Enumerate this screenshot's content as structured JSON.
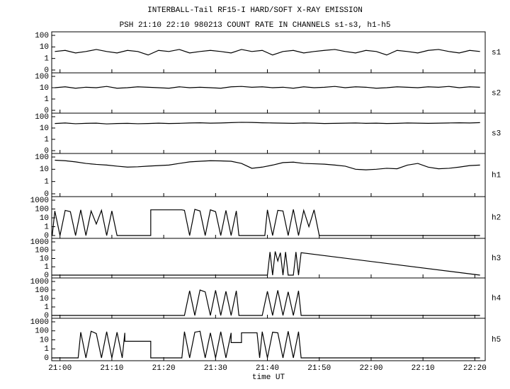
{
  "chart_data": {
    "type": "line",
    "title": "INTERBALL-Tail RF15-I HARD/SOFT X-RAY EMISSION",
    "subtitle": "PSH 21:10 22:10 980213  COUNT RATE IN CHANNELS s1-s3, h1-h5",
    "x_label": "time UT",
    "yscale": "log",
    "xlim": [
      1258.4,
      1342
    ],
    "xticks": [
      {
        "value": 1260,
        "label": "21:00"
      },
      {
        "value": 1270,
        "label": "21:10"
      },
      {
        "value": 1280,
        "label": "21:20"
      },
      {
        "value": 1290,
        "label": "21:30"
      },
      {
        "value": 1300,
        "label": "21:40"
      },
      {
        "value": 1310,
        "label": "21:50"
      },
      {
        "value": 1320,
        "label": "22:00"
      },
      {
        "value": 1330,
        "label": "22:10"
      },
      {
        "value": 1340,
        "label": "22:20"
      }
    ],
    "series": [
      {
        "name": "s1",
        "color": "#000000",
        "ylim": [
          0,
          100
        ],
        "yticks": [
          0,
          1,
          10,
          100
        ],
        "x": [
          1259,
          1261,
          1263,
          1265,
          1267,
          1269,
          1271,
          1273,
          1275,
          1277,
          1279,
          1281,
          1283,
          1285,
          1287,
          1289,
          1291,
          1293,
          1295,
          1297,
          1299,
          1301,
          1303,
          1305,
          1307,
          1309,
          1311,
          1313,
          1315,
          1317,
          1319,
          1321,
          1323,
          1325,
          1327,
          1329,
          1331,
          1333,
          1335,
          1337,
          1339,
          1341
        ],
        "values": [
          4,
          5,
          3,
          4,
          6,
          4,
          3,
          5,
          4,
          2,
          5,
          4,
          6,
          3,
          4,
          5,
          4,
          3,
          6,
          4,
          5,
          2,
          4,
          5,
          3,
          4,
          5,
          6,
          4,
          3,
          5,
          4,
          2,
          5,
          4,
          3,
          5,
          6,
          4,
          3,
          5,
          4
        ]
      },
      {
        "name": "s2",
        "color": "#000000",
        "ylim": [
          0,
          100
        ],
        "yticks": [
          0,
          1,
          10,
          100
        ],
        "x": [
          1259,
          1261,
          1263,
          1265,
          1267,
          1269,
          1271,
          1273,
          1275,
          1277,
          1279,
          1281,
          1283,
          1285,
          1287,
          1289,
          1291,
          1293,
          1295,
          1297,
          1299,
          1301,
          1303,
          1305,
          1307,
          1309,
          1311,
          1313,
          1315,
          1317,
          1319,
          1321,
          1323,
          1325,
          1327,
          1329,
          1331,
          1333,
          1335,
          1337,
          1339,
          1341
        ],
        "values": [
          10,
          12,
          9,
          11,
          10,
          13,
          9,
          10,
          12,
          11,
          10,
          9,
          12,
          10,
          11,
          10,
          9,
          12,
          13,
          11,
          12,
          10,
          11,
          9,
          12,
          10,
          11,
          13,
          10,
          12,
          11,
          9,
          10,
          12,
          11,
          10,
          12,
          11,
          13,
          10,
          12,
          11
        ]
      },
      {
        "name": "s3",
        "color": "#000000",
        "ylim": [
          0,
          100
        ],
        "yticks": [
          0,
          1,
          10,
          100
        ],
        "x": [
          1259,
          1261,
          1263,
          1265,
          1267,
          1269,
          1271,
          1273,
          1275,
          1277,
          1279,
          1281,
          1283,
          1285,
          1287,
          1289,
          1291,
          1293,
          1295,
          1297,
          1299,
          1301,
          1303,
          1305,
          1307,
          1309,
          1311,
          1313,
          1315,
          1317,
          1319,
          1321,
          1323,
          1325,
          1327,
          1329,
          1331,
          1333,
          1335,
          1337,
          1339,
          1341
        ],
        "values": [
          25,
          28,
          24,
          26,
          27,
          23,
          25,
          26,
          24,
          25,
          27,
          25,
          26,
          28,
          29,
          27,
          28,
          30,
          32,
          31,
          29,
          28,
          27,
          26,
          28,
          27,
          25,
          26,
          27,
          28,
          26,
          27,
          25,
          26,
          28,
          27,
          26,
          27,
          28,
          29,
          28,
          30
        ]
      },
      {
        "name": "h1",
        "color": "#000000",
        "ylim": [
          0,
          100
        ],
        "yticks": [
          0,
          1,
          10,
          100
        ],
        "x": [
          1259,
          1261,
          1263,
          1265,
          1267,
          1269,
          1271,
          1273,
          1275,
          1277,
          1279,
          1281,
          1283,
          1285,
          1287,
          1289,
          1291,
          1293,
          1295,
          1297,
          1299,
          1301,
          1303,
          1305,
          1307,
          1309,
          1311,
          1313,
          1315,
          1317,
          1319,
          1321,
          1323,
          1325,
          1327,
          1329,
          1331,
          1333,
          1335,
          1337,
          1339,
          1341
        ],
        "values": [
          55,
          50,
          40,
          30,
          25,
          22,
          18,
          15,
          16,
          18,
          20,
          22,
          30,
          40,
          45,
          50,
          48,
          45,
          30,
          12,
          15,
          22,
          35,
          38,
          30,
          28,
          26,
          22,
          18,
          10,
          9,
          10,
          12,
          11,
          22,
          30,
          15,
          11,
          12,
          15,
          20,
          22
        ]
      },
      {
        "name": "h2",
        "color": "#000000",
        "ylim": [
          0,
          1000
        ],
        "yticks": [
          0,
          1,
          10,
          100,
          1000
        ],
        "x": [
          1258.5,
          1259,
          1260,
          1261,
          1262,
          1263,
          1264,
          1265,
          1266,
          1267,
          1268,
          1269,
          1270,
          1271,
          1272,
          1277.5,
          1277.5,
          1283.5,
          1284,
          1285,
          1286,
          1287,
          1288,
          1289,
          1290,
          1291,
          1292,
          1293,
          1294,
          1294.5,
          1299.5,
          1300,
          1301,
          1302,
          1303,
          1304,
          1305,
          1306,
          1307,
          1308,
          1309,
          1310,
          1341
        ],
        "values": [
          0,
          60,
          0,
          70,
          50,
          0,
          80,
          0,
          60,
          2,
          70,
          0,
          60,
          0,
          0,
          0,
          80,
          80,
          70,
          0,
          90,
          60,
          0,
          80,
          50,
          0,
          70,
          0,
          60,
          0,
          0,
          80,
          0,
          70,
          60,
          0,
          90,
          0,
          70,
          1,
          80,
          0,
          0
        ]
      },
      {
        "name": "h3",
        "color": "#000000",
        "ylim": [
          0,
          1000
        ],
        "yticks": [
          0,
          1,
          10,
          100,
          1000
        ],
        "x": [
          1258.5,
          1300,
          1300.5,
          1301,
          1301.5,
          1302,
          1302.5,
          1303,
          1303.5,
          1304,
          1305,
          1305.5,
          1306,
          1306.5,
          1341
        ],
        "values": [
          0,
          0,
          60,
          0,
          70,
          5,
          50,
          0,
          60,
          0,
          0,
          60,
          0,
          50,
          0
        ]
      },
      {
        "name": "h4",
        "color": "#000000",
        "ylim": [
          0,
          1000
        ],
        "yticks": [
          0,
          1,
          10,
          100,
          1000
        ],
        "x": [
          1258.5,
          1284,
          1285,
          1286,
          1287,
          1288,
          1289,
          1290,
          1291,
          1292,
          1293,
          1294,
          1294.5,
          1299,
          1300,
          1301,
          1302,
          1303,
          1304,
          1305,
          1306,
          1306.5,
          1341
        ],
        "values": [
          0,
          0,
          80,
          0,
          100,
          60,
          0,
          90,
          0,
          70,
          0,
          80,
          0,
          0,
          70,
          0,
          90,
          0,
          60,
          0,
          80,
          0,
          0
        ]
      },
      {
        "name": "h5",
        "color": "#000000",
        "ylim": [
          0,
          1000
        ],
        "yticks": [
          0,
          1,
          10,
          100,
          1000
        ],
        "x": [
          1258.5,
          1263.5,
          1264,
          1265,
          1266,
          1267,
          1268,
          1269,
          1270,
          1271,
          1272,
          1272.5,
          1272.5,
          1277.5,
          1277.5,
          1283.5,
          1284,
          1285,
          1286,
          1287,
          1288,
          1289,
          1290,
          1291,
          1292,
          1293,
          1293,
          1295,
          1295,
          1298,
          1298.5,
          1299,
          1300,
          1301,
          1302,
          1303,
          1304,
          1305,
          1306,
          1306.5,
          1341
        ],
        "values": [
          0,
          0,
          70,
          0,
          90,
          50,
          0,
          80,
          0,
          70,
          0,
          60,
          7,
          7,
          0,
          0,
          80,
          0,
          70,
          90,
          0,
          60,
          0,
          80,
          0,
          60,
          5,
          5,
          60,
          60,
          0,
          80,
          0,
          70,
          60,
          0,
          90,
          0,
          80,
          0,
          0
        ]
      }
    ]
  }
}
